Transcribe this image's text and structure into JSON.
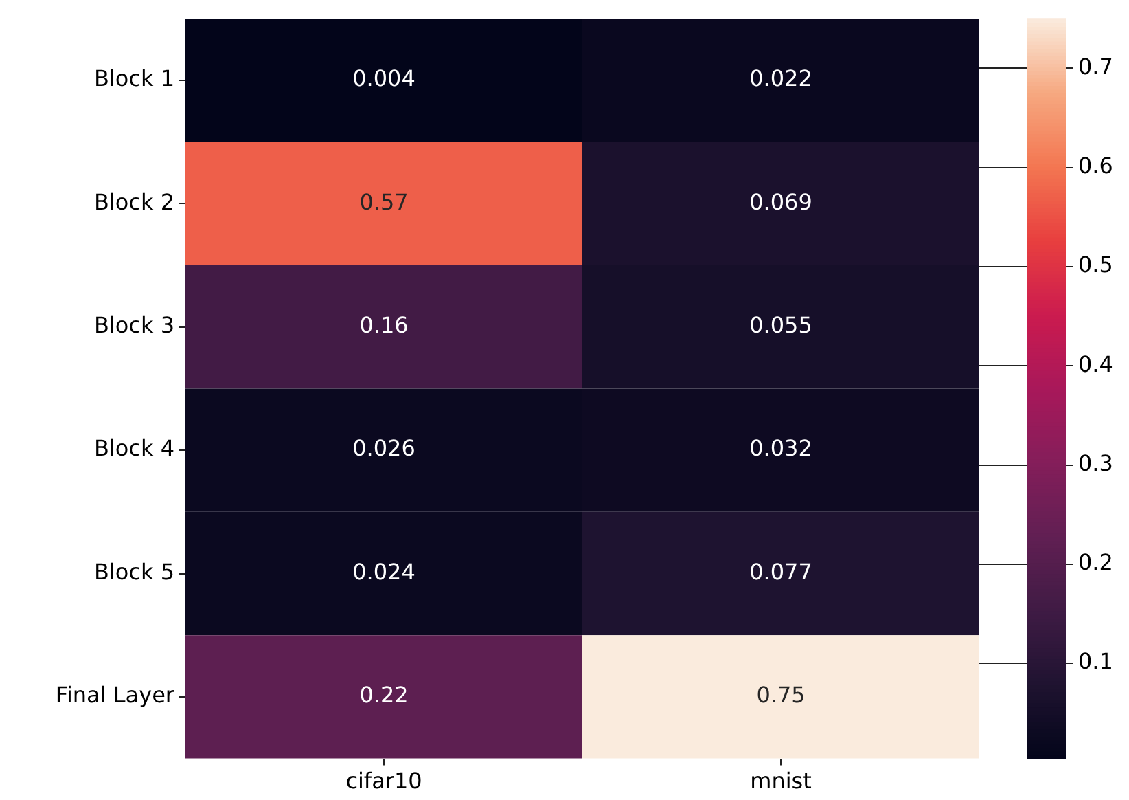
{
  "chart_data": {
    "type": "heatmap",
    "categories": [
      "cifar10",
      "mnist"
    ],
    "y_categories": [
      "Block 1",
      "Block 2",
      "Block 3",
      "Block 4",
      "Block 5",
      "Final Layer"
    ],
    "cells": [
      [
        0.004,
        0.022
      ],
      [
        0.57,
        0.069
      ],
      [
        0.16,
        0.055
      ],
      [
        0.026,
        0.032
      ],
      [
        0.024,
        0.077
      ],
      [
        0.22,
        0.75
      ]
    ],
    "data_labels": true,
    "clim": [
      0.004,
      0.75
    ],
    "cticks": [
      0.1,
      0.2,
      0.3,
      0.4,
      0.5,
      0.6,
      0.7
    ]
  }
}
